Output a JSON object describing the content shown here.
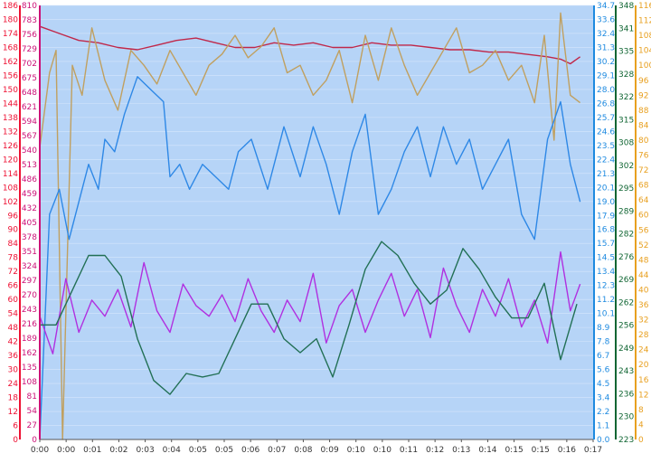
{
  "chart_data": {
    "type": "line",
    "title": "",
    "background_color": "#b6d4f7",
    "grid": true,
    "x_ticks": [
      "0:00",
      "0:00",
      "0:01",
      "0:02",
      "0:03",
      "0:04",
      "0:05",
      "0:05",
      "0:06",
      "0:07",
      "0:08",
      "0:09",
      "0:10",
      "0:10",
      "0:11",
      "0:12",
      "0:13",
      "0:14",
      "0:15",
      "0:15",
      "0:16",
      "0:17"
    ],
    "left_axis_outer": {
      "color": "#ee1133",
      "ticks": [
        "0",
        "6",
        "12",
        "18",
        "24",
        "30",
        "36",
        "42",
        "48",
        "54",
        "60",
        "66",
        "72",
        "78",
        "84",
        "90",
        "96",
        "102",
        "108",
        "114",
        "120",
        "126",
        "132",
        "138",
        "144",
        "150",
        "156",
        "162",
        "168",
        "174",
        "180",
        "186"
      ]
    },
    "left_axis_inner": {
      "color": "#cc1177",
      "ticks": [
        "0",
        "27",
        "54",
        "81",
        "108",
        "135",
        "162",
        "189",
        "216",
        "243",
        "270",
        "297",
        "324",
        "351",
        "378",
        "405",
        "432",
        "459",
        "486",
        "513",
        "540",
        "567",
        "594",
        "621",
        "648",
        "675",
        "702",
        "729",
        "756",
        "783",
        "810"
      ]
    },
    "right_axis_1": {
      "color": "#1e8ae0",
      "ticks": [
        "0.0",
        "1.1",
        "2.2",
        "3.4",
        "4.5",
        "5.6",
        "6.7",
        "7.8",
        "8.9",
        "10.1",
        "11.2",
        "12.3",
        "13.4",
        "14.5",
        "15.7",
        "16.8",
        "17.9",
        "19.0",
        "20.1",
        "21.3",
        "22.4",
        "23.5",
        "24.6",
        "25.7",
        "26.8",
        "28.0",
        "29.1",
        "30.2",
        "31.3",
        "32.4",
        "33.6",
        "34.7"
      ]
    },
    "right_axis_2": {
      "color": "#116633",
      "ticks": [
        "223",
        "230",
        "236",
        "243",
        "249",
        "256",
        "262",
        "269",
        "276",
        "282",
        "289",
        "295",
        "302",
        "308",
        "315",
        "322",
        "328",
        "335",
        "341",
        "348"
      ]
    },
    "right_axis_3": {
      "color": "#e8a020",
      "ticks": [
        "0",
        "4",
        "8",
        "12",
        "16",
        "20",
        "24",
        "28",
        "32",
        "36",
        "40",
        "44",
        "48",
        "52",
        "56",
        "60",
        "64",
        "68",
        "72",
        "76",
        "80",
        "84",
        "88",
        "92",
        "96",
        "100",
        "104",
        "108",
        "112",
        "116"
      ]
    },
    "series": [
      {
        "axis": "left_axis_outer",
        "color": "#c0284a",
        "x": [
          0,
          0.6,
          1.2,
          1.8,
          2.4,
          3,
          3.6,
          4.2,
          4.8,
          5.4,
          6,
          6.6,
          7.2,
          7.8,
          8.4,
          9,
          9.6,
          10.2,
          10.8,
          11.4,
          12,
          12.6,
          13.2,
          13.8,
          14.4,
          15,
          15.6,
          16,
          16.3,
          16.6
        ],
        "y": [
          177,
          174,
          171,
          170,
          168,
          167,
          169,
          171,
          172,
          170,
          168,
          168,
          170,
          169,
          170,
          168,
          168,
          170,
          169,
          169,
          168,
          167,
          167,
          166,
          166,
          165,
          164,
          163,
          161,
          164
        ]
      },
      {
        "axis": "right_axis_3",
        "color": "#c0a060",
        "x": [
          0,
          0.3,
          0.5,
          0.7,
          1,
          1.3,
          1.6,
          2,
          2.4,
          2.8,
          3.2,
          3.6,
          4,
          4.4,
          4.8,
          5.2,
          5.6,
          6,
          6.4,
          6.8,
          7.2,
          7.6,
          8,
          8.4,
          8.8,
          9.2,
          9.6,
          10,
          10.4,
          10.8,
          11.2,
          11.6,
          12,
          12.4,
          12.8,
          13.2,
          13.6,
          14,
          14.4,
          14.8,
          15.2,
          15.5,
          15.8,
          16,
          16.3,
          16.6
        ],
        "y": [
          78,
          98,
          104,
          0,
          100,
          92,
          110,
          96,
          88,
          104,
          100,
          95,
          104,
          98,
          92,
          100,
          103,
          108,
          102,
          105,
          110,
          98,
          100,
          92,
          96,
          104,
          90,
          108,
          96,
          110,
          100,
          92,
          98,
          104,
          110,
          98,
          100,
          104,
          96,
          100,
          90,
          108,
          80,
          114,
          92,
          90
        ]
      },
      {
        "axis": "right_axis_1",
        "color": "#2e88e6",
        "x": [
          0,
          0.3,
          0.6,
          0.9,
          1.2,
          1.5,
          1.8,
          2,
          2.3,
          2.6,
          3,
          3.4,
          3.8,
          4,
          4.3,
          4.6,
          5,
          5.4,
          5.8,
          6.1,
          6.5,
          7,
          7.5,
          8,
          8.4,
          8.8,
          9.2,
          9.6,
          10,
          10.4,
          10.8,
          11.2,
          11.6,
          12,
          12.4,
          12.8,
          13.2,
          13.6,
          14,
          14.4,
          14.8,
          15.2,
          15.6,
          16,
          16.3,
          16.6
        ],
        "y": [
          0,
          18,
          20,
          16,
          19,
          22,
          20,
          24,
          23,
          26,
          29,
          28,
          27,
          21,
          22,
          20,
          22,
          21,
          20,
          23,
          24,
          20,
          25,
          21,
          25,
          22,
          18,
          23,
          26,
          18,
          20,
          23,
          25,
          21,
          25,
          22,
          24,
          20,
          22,
          24,
          18,
          16,
          24,
          27,
          22,
          19
        ]
      },
      {
        "axis": "left_axis_inner",
        "color": "#b030e0",
        "x": [
          0,
          0.4,
          0.8,
          1.2,
          1.6,
          2,
          2.4,
          2.8,
          3.2,
          3.6,
          4,
          4.4,
          4.8,
          5.2,
          5.6,
          6,
          6.4,
          6.8,
          7.2,
          7.6,
          8,
          8.4,
          8.8,
          9.2,
          9.6,
          10,
          10.4,
          10.8,
          11.2,
          11.6,
          12,
          12.4,
          12.8,
          13.2,
          13.6,
          14,
          14.4,
          14.8,
          15.2,
          15.6,
          16,
          16.3,
          16.6
        ],
        "y": [
          230,
          160,
          300,
          200,
          260,
          230,
          280,
          210,
          330,
          240,
          200,
          290,
          250,
          230,
          270,
          220,
          300,
          240,
          200,
          260,
          220,
          310,
          180,
          250,
          280,
          200,
          260,
          310,
          230,
          280,
          190,
          320,
          250,
          200,
          280,
          230,
          300,
          210,
          260,
          180,
          350,
          240,
          290
        ]
      },
      {
        "axis": "right_axis_2",
        "color": "#227055",
        "x": [
          0,
          0.5,
          1,
          1.5,
          2,
          2.5,
          3,
          3.5,
          4,
          4.5,
          5,
          5.5,
          6,
          6.5,
          7,
          7.5,
          8,
          8.5,
          9,
          9.5,
          10,
          10.5,
          11,
          11.5,
          12,
          12.5,
          13,
          13.5,
          14,
          14.5,
          15,
          15.5,
          16,
          16.5
        ],
        "y": [
          256,
          256,
          266,
          276,
          276,
          270,
          252,
          240,
          236,
          242,
          241,
          242,
          252,
          262,
          262,
          252,
          248,
          252,
          241,
          256,
          272,
          280,
          276,
          268,
          262,
          266,
          278,
          272,
          264,
          258,
          258,
          268,
          246,
          262
        ]
      }
    ]
  }
}
